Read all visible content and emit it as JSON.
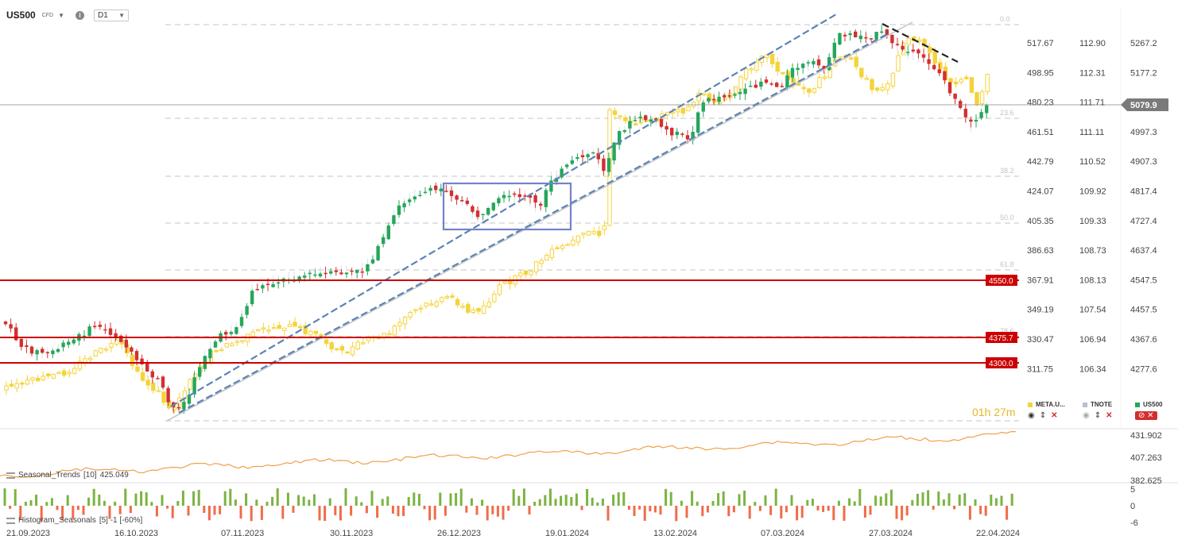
{
  "header": {
    "symbol": "US500",
    "symbol_type": "CFD",
    "timeframe": "D1",
    "info_icon": "info-icon",
    "dropdown_icon": "chevron-down-icon"
  },
  "chart_data": [
    {
      "type": "candlestick",
      "series": [
        {
          "name": "US500",
          "color": "#26a65b",
          "down_color": "#d32f2f",
          "style": "filled-candles"
        },
        {
          "name": "META.U...",
          "color": "#f5d33a",
          "style": "candles"
        },
        {
          "name": "TNOTE",
          "color": "#b7bfd6",
          "style": "overlay"
        }
      ],
      "price_axes": [
        {
          "series": "META.U...",
          "ticks": [
            517.67,
            498.95,
            480.23,
            461.51,
            442.79,
            424.07,
            405.35,
            386.63,
            367.91,
            349.19,
            330.47,
            311.75
          ]
        },
        {
          "series": "TNOTE",
          "ticks": [
            112.9,
            112.31,
            111.71,
            111.11,
            110.52,
            109.92,
            109.33,
            108.73,
            108.13,
            107.54,
            106.94,
            106.34
          ]
        },
        {
          "series": "US500",
          "ticks": [
            5267.2,
            5177.2,
            5079.9,
            4997.3,
            4907.3,
            4817.4,
            4727.4,
            4637.4,
            4547.5,
            4457.5,
            4367.6,
            4277.6
          ]
        }
      ],
      "current_price": "5079.9",
      "x_ticks": [
        "21.09.2023",
        "16.10.2023",
        "07.11.2023",
        "30.11.2023",
        "26.12.2023",
        "19.01.2024",
        "13.02.2024",
        "07.03.2024",
        "27.03.2024",
        "22.04.2024"
      ],
      "fibonacci_levels": [
        "0.0",
        "23.6",
        "38.2",
        "50.0",
        "61.8",
        "78.6"
      ],
      "horizontal_levels": [
        "4550.0",
        "4375.7",
        "4300.0"
      ],
      "grid": false
    },
    {
      "type": "line",
      "name": "Seasonal_Trends",
      "label": "Seasonal_Trends",
      "params": "[10]",
      "value": "425.049",
      "color": "#f0a04b",
      "ticks": [
        "431.902",
        "407.263",
        "382.625"
      ]
    },
    {
      "type": "bar",
      "name": "Histogram_Seasonals",
      "label": "Histogram_Seasonals",
      "params": "[5] -1 [-60%]",
      "positive_color": "#7cb342",
      "negative_color": "#ef6c4a",
      "ticks": [
        "5",
        "0",
        "-6"
      ]
    }
  ],
  "legend": {
    "meta": "META.U...",
    "tnote": "TNOTE",
    "us500": "US500",
    "meta_color": "#f5d33a",
    "tnote_color": "#b7bfd6",
    "us500_color": "#26a65b"
  },
  "timer": "01h 27m",
  "indicators": {
    "trends_name": "Seasonal_Trends",
    "trends_params": "[10]",
    "trends_value": "425.049",
    "hist_name": "Histogram_Seasonals",
    "hist_params": "[5] -1 [-60%]"
  }
}
